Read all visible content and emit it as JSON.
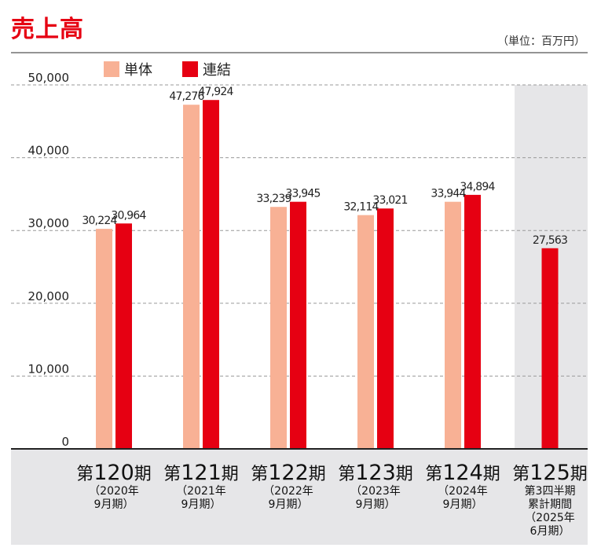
{
  "title": "売上高",
  "unit_label": "（単位：百万円）",
  "chart_data": {
    "type": "bar",
    "title": "売上高",
    "unit": "（単位：百万円）",
    "ylim": [
      0,
      50000
    ],
    "yticks": [
      "0",
      "10,000",
      "20,000",
      "30,000",
      "40,000",
      "50,000"
    ],
    "ytick_values": [
      0,
      10000,
      20000,
      30000,
      40000,
      50000
    ],
    "grid": true,
    "legend_position": "top-left",
    "series": [
      {
        "name": "単体",
        "color": "#f8b195",
        "values": [
          30224,
          47276,
          33239,
          32114,
          33944,
          null
        ],
        "labels": [
          "30,224",
          "47,276",
          "33,239",
          "32,114",
          "33,944",
          ""
        ]
      },
      {
        "name": "連結",
        "color": "#e60012",
        "values": [
          30964,
          47924,
          33945,
          33021,
          34894,
          27563
        ],
        "labels": [
          "30,964",
          "47,924",
          "33,945",
          "33,021",
          "34,894",
          "27,563"
        ]
      }
    ],
    "categories": [
      {
        "prefix": "第",
        "num": "120",
        "suffix": "期",
        "sub": [
          "（2020年",
          "9月期）"
        ]
      },
      {
        "prefix": "第",
        "num": "121",
        "suffix": "期",
        "sub": [
          "（2021年",
          "9月期）"
        ]
      },
      {
        "prefix": "第",
        "num": "122",
        "suffix": "期",
        "sub": [
          "（2022年",
          "9月期）"
        ]
      },
      {
        "prefix": "第",
        "num": "123",
        "suffix": "期",
        "sub": [
          "（2023年",
          "9月期）"
        ]
      },
      {
        "prefix": "第",
        "num": "124",
        "suffix": "期",
        "sub": [
          "（2024年",
          "9月期）"
        ]
      },
      {
        "prefix": "第",
        "num": "125",
        "suffix": "期",
        "sub": [
          "第3四半期",
          "累計期間",
          "（2025年",
          "6月期）"
        ]
      }
    ]
  }
}
